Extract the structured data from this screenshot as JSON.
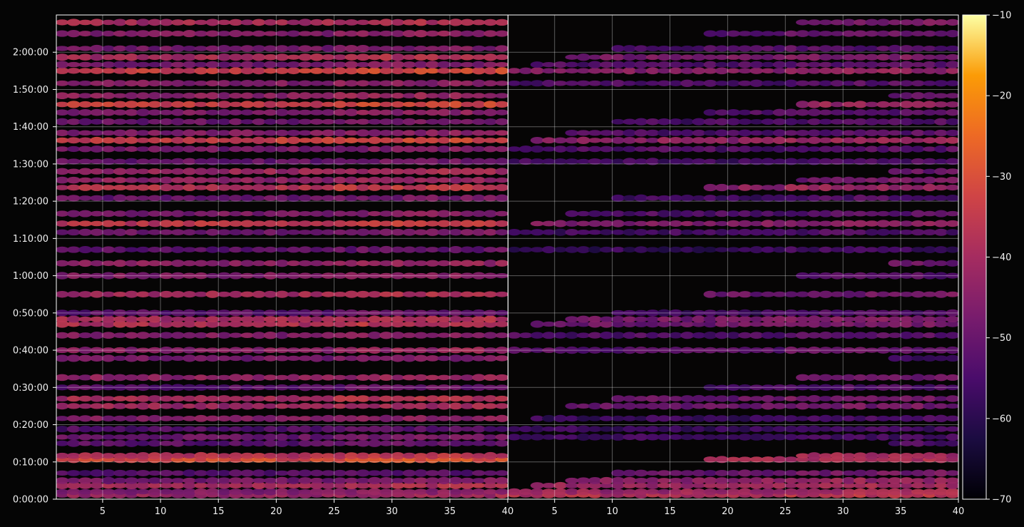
{
  "chart_data": {
    "type": "heatmap",
    "title": "",
    "xlabel": "",
    "ylabel": "",
    "panels": [
      {
        "name": "",
        "xlim": [
          1,
          40
        ],
        "x_ticks": [
          5,
          10,
          15,
          20,
          25,
          30,
          35,
          40
        ],
        "x_tick_labels": [
          "5",
          "10",
          "15",
          "20",
          "25",
          "30",
          "35",
          "40"
        ]
      },
      {
        "name": "",
        "xlim": [
          1,
          40
        ],
        "x_ticks": [
          5,
          10,
          15,
          20,
          25,
          30,
          35,
          40
        ],
        "x_tick_labels": [
          "5",
          "10",
          "15",
          "20",
          "25",
          "30",
          "35",
          "40"
        ]
      }
    ],
    "y_axis": {
      "unit": "seconds",
      "ylim": [
        0,
        7800
      ],
      "ticks": [
        0,
        600,
        1200,
        1800,
        2400,
        3000,
        3600,
        4200,
        4800,
        5400,
        6000,
        6600,
        7200
      ],
      "tick_labels": [
        "0:00:00",
        "0:10:00",
        "0:20:00",
        "0:30:00",
        "0:40:00",
        "0:50:00",
        "1:00:00",
        "1:10:00",
        "1:20:00",
        "1:30:00",
        "1:40:00",
        "1:50:00",
        "2:00:00"
      ]
    },
    "colorbar": {
      "colormap": "inferno",
      "vmin": -70,
      "vmax": -10,
      "ticks": [
        -10,
        -20,
        -30,
        -40,
        -50,
        -60,
        -70
      ],
      "tick_labels": [
        "−10",
        "−20",
        "−30",
        "−40",
        "−50",
        "−60",
        "−70"
      ]
    },
    "grid": true,
    "bands": [
      {
        "t": 70,
        "a": -42,
        "b": -38
      },
      {
        "t": 120,
        "a": -46,
        "b": -42
      },
      {
        "t": 220,
        "a": -40,
        "b": -42
      },
      {
        "t": 300,
        "a": -48,
        "b": -44
      },
      {
        "t": 420,
        "a": -54,
        "b": -50
      },
      {
        "t": 640,
        "a": -31,
        "b": -40
      },
      {
        "t": 700,
        "a": -38,
        "b": -42
      },
      {
        "t": 900,
        "a": -52,
        "b": -56
      },
      {
        "t": 1000,
        "a": -50,
        "b": -57
      },
      {
        "t": 1130,
        "a": -54,
        "b": -58
      },
      {
        "t": 1300,
        "a": -46,
        "b": -57
      },
      {
        "t": 1500,
        "a": -42,
        "b": -50
      },
      {
        "t": 1620,
        "a": -40,
        "b": -50
      },
      {
        "t": 1800,
        "a": -52,
        "b": -56
      },
      {
        "t": 1960,
        "a": -44,
        "b": -52
      },
      {
        "t": 2270,
        "a": -48,
        "b": -58
      },
      {
        "t": 2400,
        "a": -44,
        "b": -52
      },
      {
        "t": 2640,
        "a": -46,
        "b": -54
      },
      {
        "t": 2820,
        "a": -38,
        "b": -49
      },
      {
        "t": 2900,
        "a": -40,
        "b": -48
      },
      {
        "t": 3000,
        "a": -52,
        "b": -56
      },
      {
        "t": 3300,
        "a": -40,
        "b": -50
      },
      {
        "t": 3600,
        "a": -46,
        "b": -55
      },
      {
        "t": 3800,
        "a": -44,
        "b": -52
      },
      {
        "t": 4020,
        "a": -52,
        "b": -58
      },
      {
        "t": 4300,
        "a": -48,
        "b": -56
      },
      {
        "t": 4440,
        "a": -36,
        "b": -46
      },
      {
        "t": 4600,
        "a": -47,
        "b": -54
      },
      {
        "t": 4850,
        "a": -50,
        "b": -56
      },
      {
        "t": 5020,
        "a": -37,
        "b": -44
      },
      {
        "t": 5140,
        "a": -44,
        "b": -50
      },
      {
        "t": 5280,
        "a": -42,
        "b": -52
      },
      {
        "t": 5440,
        "a": -50,
        "b": -56
      },
      {
        "t": 5640,
        "a": -48,
        "b": -54
      },
      {
        "t": 5780,
        "a": -34,
        "b": -44
      },
      {
        "t": 5900,
        "a": -46,
        "b": -54
      },
      {
        "t": 6080,
        "a": -50,
        "b": -55
      },
      {
        "t": 6230,
        "a": -46,
        "b": -54
      },
      {
        "t": 6360,
        "a": -34,
        "b": -44
      },
      {
        "t": 6500,
        "a": -44,
        "b": -52
      },
      {
        "t": 6700,
        "a": -46,
        "b": -54
      },
      {
        "t": 6900,
        "a": -34,
        "b": -45
      },
      {
        "t": 7000,
        "a": -48,
        "b": -54
      },
      {
        "t": 7120,
        "a": -40,
        "b": -48
      },
      {
        "t": 7260,
        "a": -48,
        "b": -54
      },
      {
        "t": 7500,
        "a": -46,
        "b": -52
      },
      {
        "t": 7680,
        "a": -40,
        "b": -48
      }
    ]
  }
}
